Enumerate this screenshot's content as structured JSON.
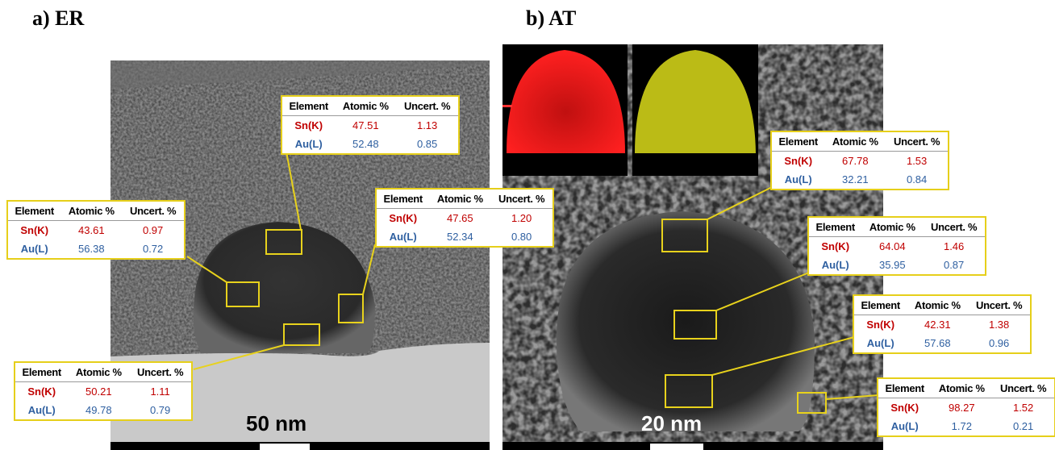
{
  "panels": [
    {
      "label": "a) ER",
      "scale_bar": "50 nm",
      "tables": [
        {
          "rows": [
            [
              "Sn(K)",
              "47.51",
              "1.13"
            ],
            [
              "Au(L)",
              "52.48",
              "0.85"
            ]
          ]
        },
        {
          "rows": [
            [
              "Sn(K)",
              "43.61",
              "0.97"
            ],
            [
              "Au(L)",
              "56.38",
              "0.72"
            ]
          ]
        },
        {
          "rows": [
            [
              "Sn(K)",
              "47.65",
              "1.20"
            ],
            [
              "Au(L)",
              "52.34",
              "0.80"
            ]
          ]
        },
        {
          "rows": [
            [
              "Sn(K)",
              "50.21",
              "1.11"
            ],
            [
              "Au(L)",
              "49.78",
              "0.79"
            ]
          ]
        }
      ]
    },
    {
      "label": "b) AT",
      "scale_bar": "20 nm",
      "tables": [
        {
          "rows": [
            [
              "Sn(K)",
              "67.78",
              "1.53"
            ],
            [
              "Au(L)",
              "32.21",
              "0.84"
            ]
          ]
        },
        {
          "rows": [
            [
              "Sn(K)",
              "64.04",
              "1.46"
            ],
            [
              "Au(L)",
              "35.95",
              "0.87"
            ]
          ]
        },
        {
          "rows": [
            [
              "Sn(K)",
              "42.31",
              "1.38"
            ],
            [
              "Au(L)",
              "57.68",
              "0.96"
            ]
          ]
        },
        {
          "rows": [
            [
              "Sn(K)",
              "98.27",
              "1.52"
            ],
            [
              "Au(L)",
              "1.72",
              "0.21"
            ]
          ]
        }
      ]
    }
  ],
  "table_header": [
    "Element",
    "Atomic %",
    "Uncert. %"
  ]
}
